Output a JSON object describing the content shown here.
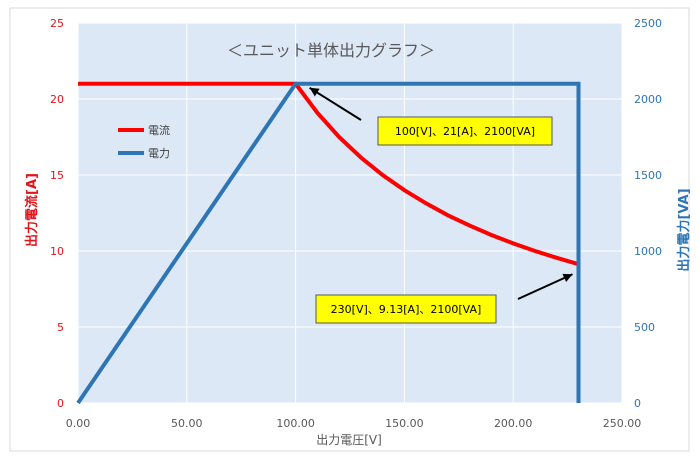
{
  "chart_data": {
    "type": "line",
    "title": "＜ユニット単体出力グラフ＞",
    "xlabel": "出力電圧[V]",
    "ylabel_left": "出力電流[A]",
    "ylabel_right": "出力電力[VA]",
    "xlim": [
      0,
      250
    ],
    "ylim_left": [
      0,
      25
    ],
    "ylim_right": [
      0,
      2500
    ],
    "x_ticks": [
      "0.00",
      "50.00",
      "100.00",
      "150.00",
      "200.00",
      "250.00"
    ],
    "y_ticks_left": [
      "0",
      "5",
      "10",
      "15",
      "20",
      "25"
    ],
    "y_ticks_right": [
      "0",
      "500",
      "1000",
      "1500",
      "2000",
      "2500"
    ],
    "grid": true,
    "legend_position": "top-left",
    "series": [
      {
        "name": "電流",
        "axis": "left",
        "color": "#ff0000",
        "points": [
          [
            0,
            21
          ],
          [
            100,
            21
          ],
          [
            110,
            19.09
          ],
          [
            120,
            17.5
          ],
          [
            130,
            16.15
          ],
          [
            140,
            15.0
          ],
          [
            150,
            14.0
          ],
          [
            160,
            13.13
          ],
          [
            170,
            12.35
          ],
          [
            180,
            11.67
          ],
          [
            190,
            11.05
          ],
          [
            200,
            10.5
          ],
          [
            210,
            10.0
          ],
          [
            220,
            9.55
          ],
          [
            230,
            9.13
          ]
        ]
      },
      {
        "name": "電力",
        "axis": "right",
        "color": "#2e75b6",
        "points": [
          [
            0,
            0
          ],
          [
            100,
            2100
          ],
          [
            230,
            2100
          ],
          [
            230,
            0
          ]
        ]
      }
    ],
    "annotations": [
      {
        "text": "100[V]、21[A]、2100[VA]",
        "x": 100,
        "y_left": 21
      },
      {
        "text": "230[V]、9.13[A]、2100[VA]",
        "x": 230,
        "y_left": 9.13
      }
    ]
  }
}
